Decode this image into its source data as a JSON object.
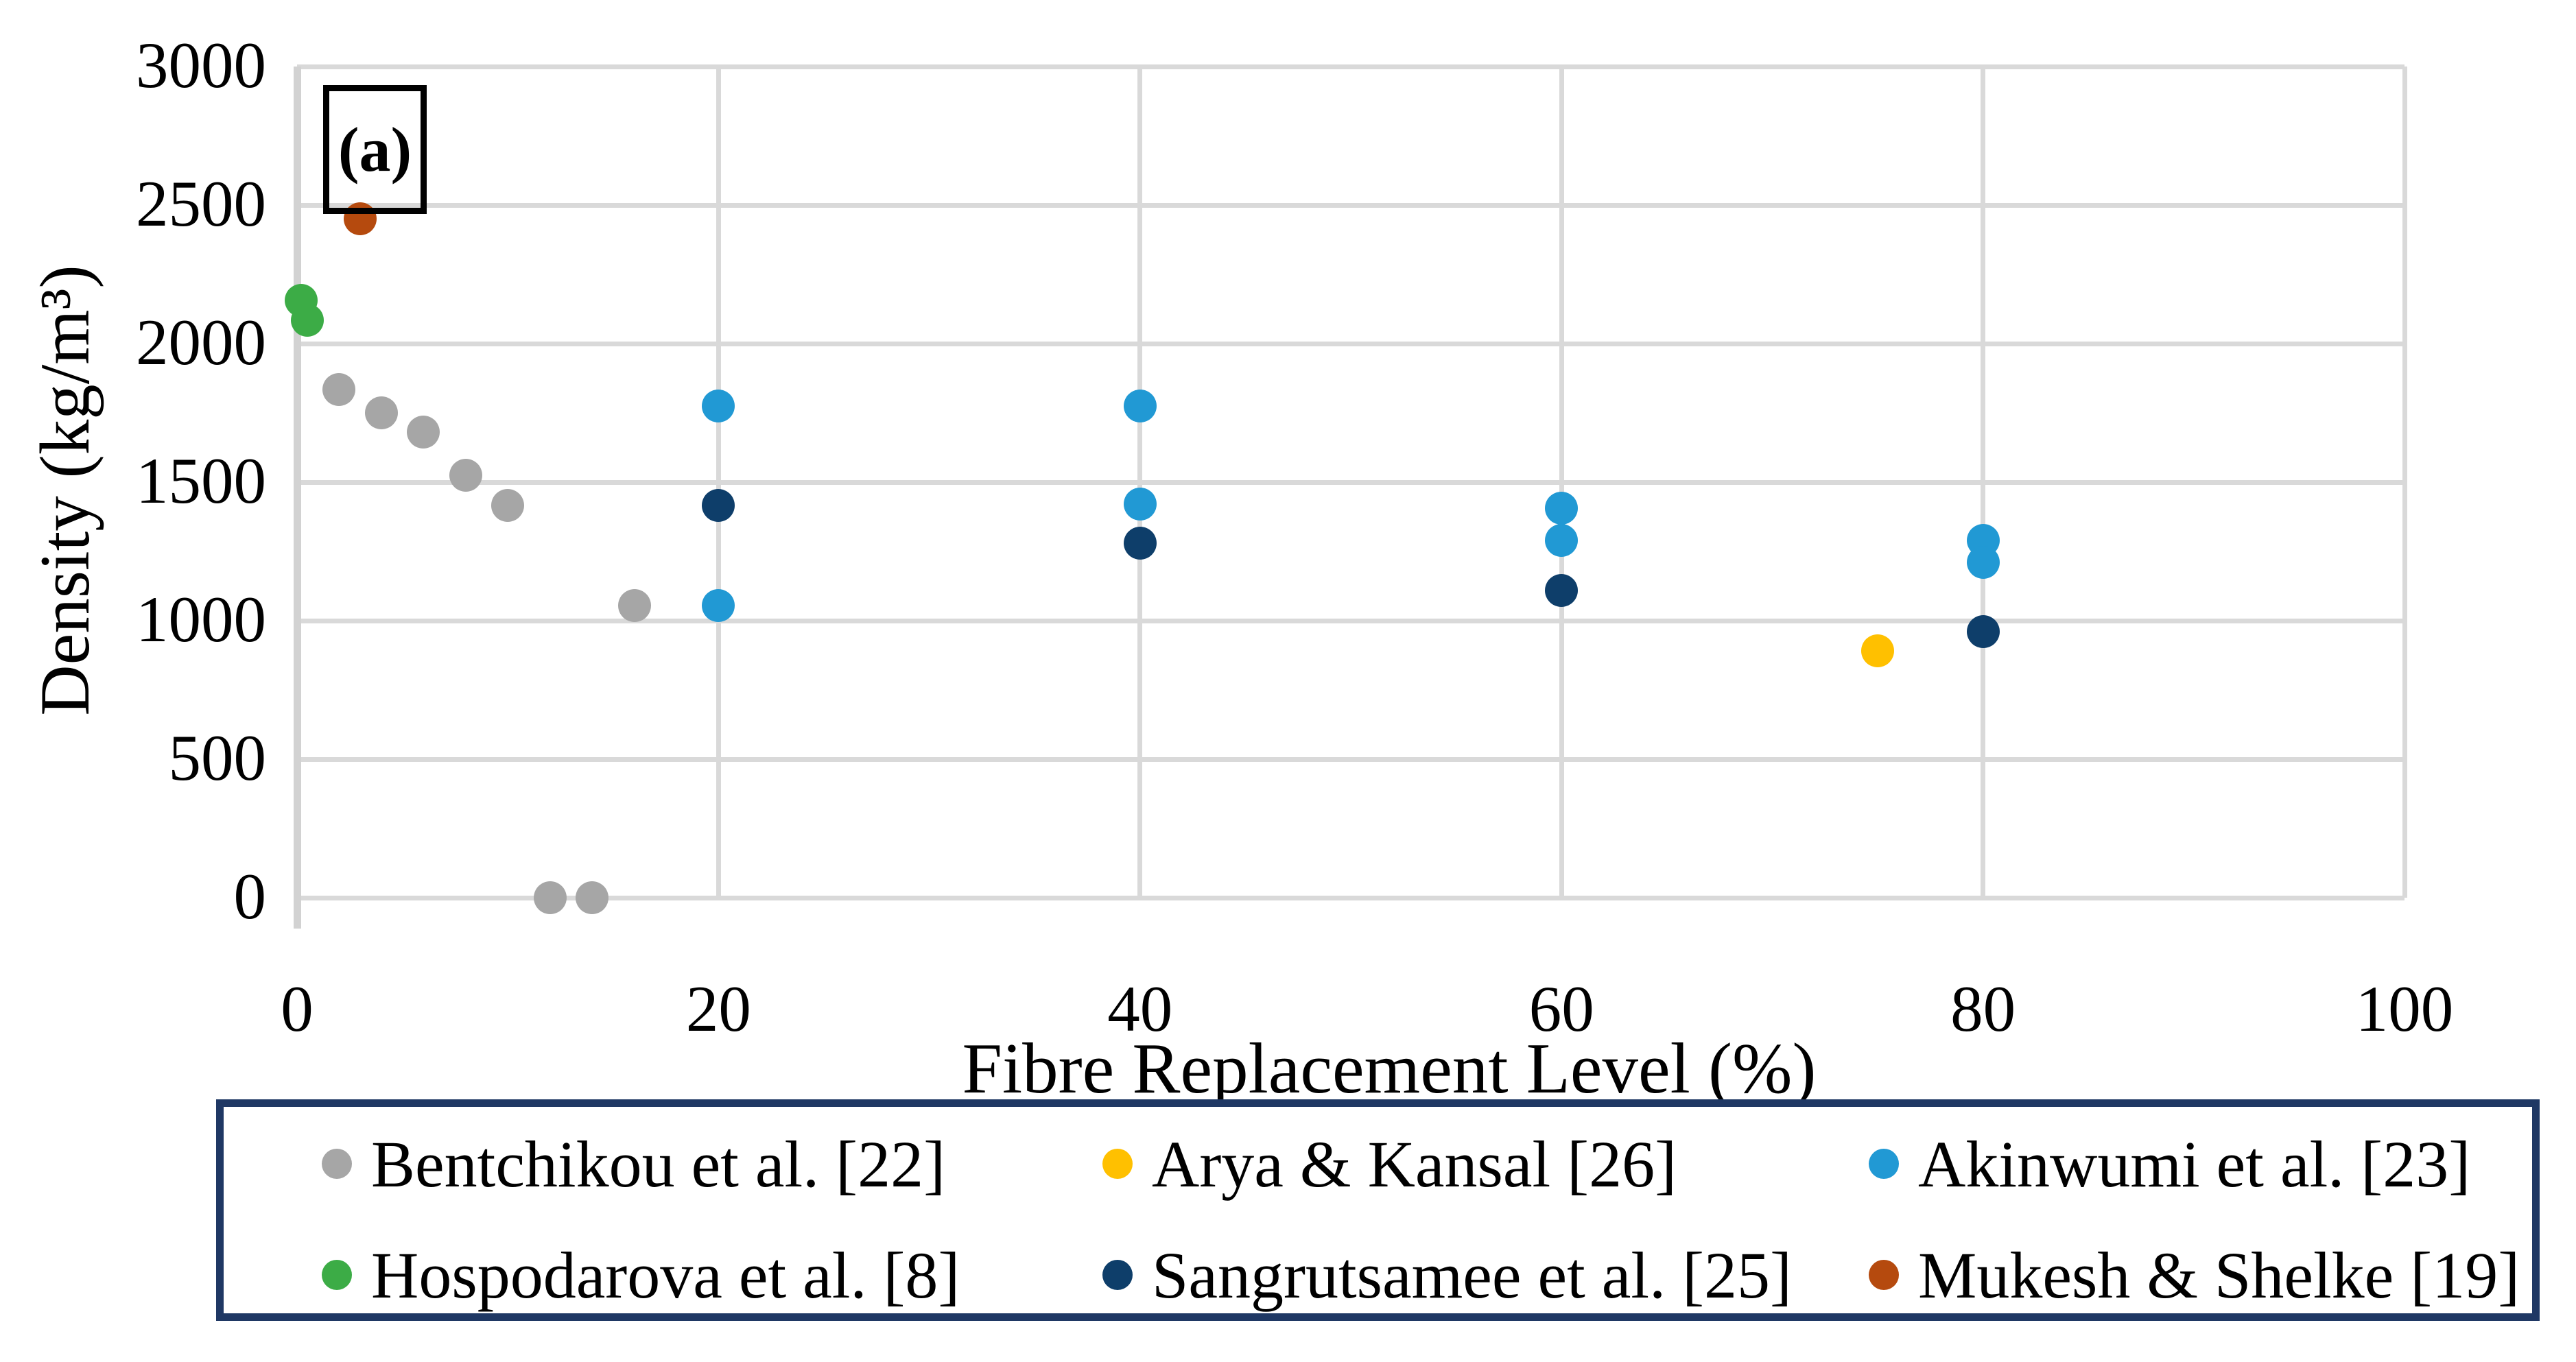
{
  "figure": {
    "annotation": "(a)",
    "x_axis": {
      "title": "Fibre Replacement Level (%)",
      "ticks": [
        0,
        20,
        40,
        60,
        80,
        100
      ],
      "min": 0,
      "max": 100
    },
    "y_axis": {
      "title": "Density (kg/m³)",
      "ticks": [
        0,
        500,
        1000,
        1500,
        2000,
        2500,
        3000
      ],
      "min": 0,
      "max": 3000
    }
  },
  "chart_data": {
    "type": "scatter",
    "title": "",
    "xlabel": "Fibre Replacement Level (%)",
    "ylabel": "Density (kg/m³)",
    "xlim": [
      0,
      100
    ],
    "ylim": [
      0,
      3000
    ],
    "grid": true,
    "legend_position": "bottom",
    "series": [
      {
        "name": "Bentchikou et al. [22]",
        "color": "#A6A6A6",
        "points": [
          [
            2,
            1835
          ],
          [
            4,
            1750
          ],
          [
            6,
            1680
          ],
          [
            8,
            1525
          ],
          [
            10,
            1415
          ],
          [
            12,
            0
          ],
          [
            14,
            0
          ],
          [
            16,
            1055
          ]
        ]
      },
      {
        "name": "Hospodarova et al. [8]",
        "color": "#3CAC46",
        "points": [
          [
            0.2,
            2155
          ],
          [
            0.5,
            2085
          ]
        ]
      },
      {
        "name": "Mukesh & Shelke [19]",
        "color": "#B54A0E",
        "points": [
          [
            3,
            2450
          ]
        ]
      },
      {
        "name": "Akinwumi et al. [23]",
        "color": "#2199D4",
        "points": [
          [
            20,
            1775
          ],
          [
            20,
            1055
          ],
          [
            40,
            1775
          ],
          [
            40,
            1420
          ],
          [
            60,
            1405
          ],
          [
            60,
            1290
          ],
          [
            80,
            1290
          ],
          [
            80,
            1210
          ]
        ]
      },
      {
        "name": "Sangrutsamee et al. [25]",
        "color": "#0E3E6A",
        "points": [
          [
            20,
            1415
          ],
          [
            40,
            1280
          ],
          [
            60,
            1110
          ],
          [
            80,
            960
          ]
        ]
      },
      {
        "name": "Arya & Kansal [26]",
        "color": "#FFC000",
        "points": [
          [
            75,
            890
          ]
        ]
      }
    ]
  },
  "legend": {
    "items": [
      {
        "label": "Bentchikou et al. [22]",
        "color": "#A6A6A6"
      },
      {
        "label": "Arya & Kansal [26]",
        "color": "#FFC000"
      },
      {
        "label": "Akinwumi et al. [23]",
        "color": "#2199D4"
      },
      {
        "label": "Hospodarova et al. [8]",
        "color": "#3CAC46"
      },
      {
        "label": "Sangrutsamee et al. [25]",
        "color": "#0E3E6A"
      },
      {
        "label": "Mukesh & Shelke [19]",
        "color": "#B54A0E"
      }
    ]
  }
}
